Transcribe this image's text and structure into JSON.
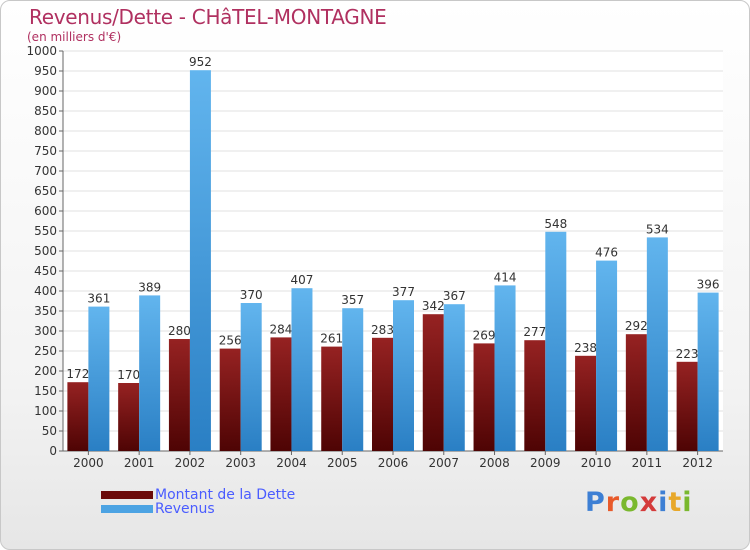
{
  "header": {
    "title": "Revenus/Dette - CHâTEL-MONTAGNE",
    "subtitle": "(en milliers d'€)"
  },
  "legend": {
    "items": [
      {
        "label": "Montant de la Dette",
        "color": "#6b0a0a"
      },
      {
        "label": "Revenus",
        "color": "#4ca3e3"
      }
    ]
  },
  "logo": {
    "text": "Proxiti",
    "letter_colors": [
      "#3d7fd4",
      "#e85a2a",
      "#7ab82e",
      "#d43a3a",
      "#3d7fd4",
      "#e8a82a",
      "#7ab82e"
    ]
  },
  "chart_data": {
    "type": "bar",
    "categories": [
      "2000",
      "2001",
      "2002",
      "2003",
      "2004",
      "2005",
      "2006",
      "2007",
      "2008",
      "2009",
      "2010",
      "2011",
      "2012"
    ],
    "series": [
      {
        "name": "Montant de la Dette",
        "values": [
          172,
          170,
          280,
          256,
          284,
          261,
          283,
          342,
          269,
          277,
          238,
          292,
          223
        ],
        "color_top": "#962222",
        "color_bottom": "#4e0404"
      },
      {
        "name": "Revenus",
        "values": [
          361,
          389,
          952,
          370,
          407,
          357,
          377,
          367,
          414,
          548,
          476,
          534,
          396
        ],
        "color_top": "#62b5ee",
        "color_bottom": "#2a7fc4"
      }
    ],
    "ylim": [
      0,
      1000
    ],
    "yticks": [
      0,
      50,
      100,
      150,
      200,
      250,
      300,
      350,
      400,
      450,
      500,
      550,
      600,
      650,
      700,
      750,
      800,
      850,
      900,
      950,
      1000
    ],
    "grid": true,
    "legend_position": "bottom-left"
  }
}
